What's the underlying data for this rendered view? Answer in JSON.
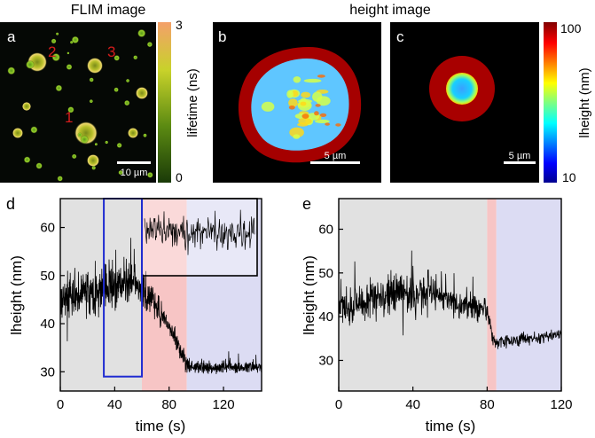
{
  "panel_a": {
    "section_title": "FLIM image",
    "letter": "a",
    "labels": [
      "1",
      "2",
      "3"
    ],
    "scalebar": "10 µm",
    "colorbar_max": "3",
    "colorbar_min": "0",
    "colorbar_label": "lifetime (ns)"
  },
  "height_title": "height image",
  "panel_b": {
    "letter": "b",
    "scalebar": "5 µm"
  },
  "panel_c": {
    "letter": "c",
    "scalebar": "5 µm"
  },
  "height_colorbar": {
    "max": "100",
    "min": "10",
    "label": "lheight (nm)"
  },
  "colors": {
    "gray_region": "#e1e1e1",
    "red_region": "#f7c5c5",
    "blue_region": "#dcdcf3",
    "blue_box": "#1f2bd1",
    "label_red": "#d41c1c"
  },
  "chart_data": [
    {
      "id": "d",
      "type": "line",
      "letter": "d",
      "xlabel": "time (s)",
      "ylabel": "lheight (nm)",
      "xlim": [
        0,
        148
      ],
      "ylim": [
        26,
        66
      ],
      "xticks": [
        0,
        40,
        80,
        120
      ],
      "yticks": [
        30,
        40,
        50,
        60
      ],
      "regions": [
        {
          "from": 0,
          "to": 60,
          "color": "gray"
        },
        {
          "from": 60,
          "to": 93,
          "color": "red"
        },
        {
          "from": 93,
          "to": 148,
          "color": "blue"
        }
      ],
      "highlight_box": {
        "x": [
          32,
          60
        ],
        "y": [
          29,
          66
        ]
      },
      "trace": {
        "segments": [
          {
            "t0": 0,
            "t1": 55,
            "mean_start": 45,
            "mean_end": 49,
            "noise": 4.5
          },
          {
            "t0": 55,
            "t1": 75,
            "mean_start": 49,
            "mean_end": 42,
            "noise": 3.5
          },
          {
            "t0": 75,
            "t1": 95,
            "mean_start": 42,
            "mean_end": 31,
            "noise": 2.2
          },
          {
            "t0": 95,
            "t1": 148,
            "mean_start": 31,
            "mean_end": 31,
            "noise": 1.2
          }
        ]
      }
    },
    {
      "id": "e",
      "type": "line",
      "letter": "e",
      "xlabel": "time (s)",
      "ylabel": "lheight (nm)",
      "xlim": [
        0,
        120
      ],
      "ylim": [
        23,
        67
      ],
      "xticks": [
        0,
        40,
        80,
        120
      ],
      "yticks": [
        30,
        40,
        50,
        60
      ],
      "regions": [
        {
          "from": 0,
          "to": 80,
          "color": "gray"
        },
        {
          "from": 80,
          "to": 85,
          "color": "red"
        },
        {
          "from": 85,
          "to": 120,
          "color": "blue"
        }
      ],
      "trace": {
        "segments": [
          {
            "t0": 0,
            "t1": 20,
            "mean_start": 42,
            "mean_end": 44,
            "noise": 4
          },
          {
            "t0": 20,
            "t1": 50,
            "mean_start": 44,
            "mean_end": 46,
            "noise": 5
          },
          {
            "t0": 50,
            "t1": 80,
            "mean_start": 45,
            "mean_end": 41,
            "noise": 3
          },
          {
            "t0": 80,
            "t1": 84,
            "mean_start": 41,
            "mean_end": 34,
            "noise": 2
          },
          {
            "t0": 84,
            "t1": 120,
            "mean_start": 34,
            "mean_end": 36,
            "noise": 1.4
          }
        ]
      }
    }
  ]
}
